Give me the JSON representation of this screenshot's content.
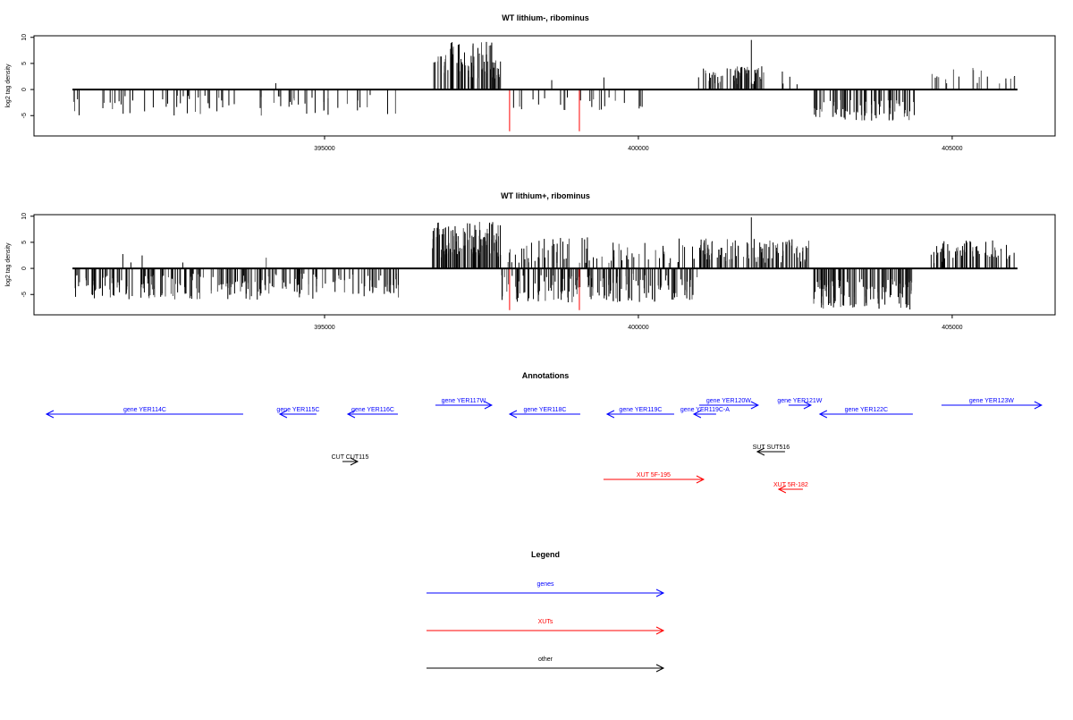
{
  "chart_data": [
    {
      "type": "bar",
      "title": "WT lithium-, ribominus",
      "ylabel": "log2 tag density",
      "xlim": [
        390370,
        406640
      ],
      "ylim": [
        -8.9,
        10.3
      ],
      "yticks": [
        -5,
        0,
        5,
        10
      ],
      "xticks": [
        395000,
        400000,
        405000
      ],
      "regions": [
        {
          "start": 390983,
          "end": 396182,
          "min": -5,
          "max": -1,
          "density": 14
        },
        {
          "start": 394150,
          "end": 394250,
          "min": 1,
          "max": 1.7,
          "density": 10
        },
        {
          "start": 396709,
          "end": 397000,
          "min": 3,
          "max": 7,
          "density": 40
        },
        {
          "start": 397000,
          "end": 397806,
          "min": 2,
          "max": 9.5,
          "density": 80
        },
        {
          "start": 397806,
          "end": 400085,
          "min": -4,
          "max": -1.5,
          "density": 10
        },
        {
          "start": 398400,
          "end": 399600,
          "min": 1.5,
          "max": 2.5,
          "density": 2
        },
        {
          "start": 400940,
          "end": 402008,
          "min": 1,
          "max": 4.5,
          "density": 60
        },
        {
          "start": 402008,
          "end": 402792,
          "min": 1,
          "max": 3.5,
          "density": 5
        },
        {
          "start": 402792,
          "end": 404416,
          "min": -6,
          "max": -2,
          "density": 45
        },
        {
          "start": 404643,
          "end": 406040,
          "min": 1,
          "max": 4.5,
          "density": 14
        }
      ],
      "spikes": [
        {
          "x": 401800,
          "y": 9.5,
          "color": "#000000"
        }
      ],
      "highlights": [
        {
          "x": 397948,
          "y": -8
        },
        {
          "x": 399060,
          "y": -8
        }
      ],
      "highlight_color": "#ff0000"
    },
    {
      "type": "bar",
      "title": "WT lithium+, ribominus",
      "ylabel": "log2 tag density",
      "xlim": [
        390370,
        406640
      ],
      "ylim": [
        -8.9,
        10.3
      ],
      "yticks": [
        -5,
        0,
        5,
        10
      ],
      "xticks": [
        395000,
        400000,
        405000
      ],
      "regions": [
        {
          "start": 390983,
          "end": 396182,
          "min": -6,
          "max": -1,
          "density": 45
        },
        {
          "start": 391600,
          "end": 394300,
          "min": 1,
          "max": 2.8,
          "density": 2
        },
        {
          "start": 396709,
          "end": 397806,
          "min": 2,
          "max": 9,
          "density": 110
        },
        {
          "start": 397806,
          "end": 400940,
          "min": -6.5,
          "max": -1,
          "density": 50
        },
        {
          "start": 397806,
          "end": 400940,
          "min": 1,
          "max": 6,
          "density": 25
        },
        {
          "start": 400940,
          "end": 402792,
          "min": 1,
          "max": 6,
          "density": 55
        },
        {
          "start": 402792,
          "end": 404416,
          "min": -8,
          "max": -2,
          "density": 75
        },
        {
          "start": 404643,
          "end": 406040,
          "min": 1,
          "max": 5.5,
          "density": 50
        }
      ],
      "spikes": [
        {
          "x": 401800,
          "y": 9.8,
          "color": "#000000"
        }
      ],
      "highlights": [
        {
          "x": 397948,
          "y": -8
        },
        {
          "x": 399060,
          "y": -8
        }
      ],
      "highlight_color": "#ff0000"
    }
  ],
  "annotations": {
    "title": "Annotations",
    "features": [
      {
        "label": "gene YER114C",
        "start": 390569,
        "end": 393703,
        "strand": "-",
        "kind": "gene"
      },
      {
        "label": "gene YER115C",
        "start": 394287,
        "end": 394871,
        "strand": "-",
        "kind": "gene"
      },
      {
        "label": "gene YER116C",
        "start": 395370,
        "end": 396168,
        "strand": "-",
        "kind": "gene"
      },
      {
        "label": "gene YER117W",
        "start": 396766,
        "end": 397663,
        "strand": "+",
        "kind": "gene"
      },
      {
        "label": "gene YER118C",
        "start": 397949,
        "end": 399074,
        "strand": "-",
        "kind": "gene"
      },
      {
        "label": "gene YER119C",
        "start": 399501,
        "end": 400570,
        "strand": "-",
        "kind": "gene"
      },
      {
        "label": "gene YER119C-A",
        "start": 400883,
        "end": 401239,
        "strand": "-",
        "kind": "gene"
      },
      {
        "label": "gene YER120W",
        "start": 400968,
        "end": 401908,
        "strand": "+",
        "kind": "gene"
      },
      {
        "label": "gene YER121W",
        "start": 402393,
        "end": 402749,
        "strand": "+",
        "kind": "gene"
      },
      {
        "label": "gene YER122C",
        "start": 402891,
        "end": 404373,
        "strand": "-",
        "kind": "gene"
      },
      {
        "label": "gene YER123W",
        "start": 404829,
        "end": 406424,
        "strand": "+",
        "kind": "gene"
      },
      {
        "label": "CUT CUT115",
        "start": 395285,
        "end": 395527,
        "strand": "+",
        "kind": "other",
        "row": "cut"
      },
      {
        "label": "SUT SUT516",
        "start": 401894,
        "end": 402336,
        "strand": "-",
        "kind": "other",
        "row": "sut"
      },
      {
        "label": "XUT 5F-195",
        "start": 399444,
        "end": 401040,
        "strand": "+",
        "kind": "xut",
        "row": "xutf"
      },
      {
        "label": "XUT 5R-182",
        "start": 402236,
        "end": 402621,
        "strand": "-",
        "kind": "xut",
        "row": "xutr"
      }
    ]
  },
  "legend": {
    "title": "Legend",
    "items": [
      {
        "label": "genes",
        "color": "#0000ff"
      },
      {
        "label": "XUTs",
        "color": "#ff0000"
      },
      {
        "label": "other",
        "color": "#000000"
      }
    ]
  },
  "colors": {
    "gene": "#0000ff",
    "xut": "#ff0000",
    "other": "#000000"
  }
}
